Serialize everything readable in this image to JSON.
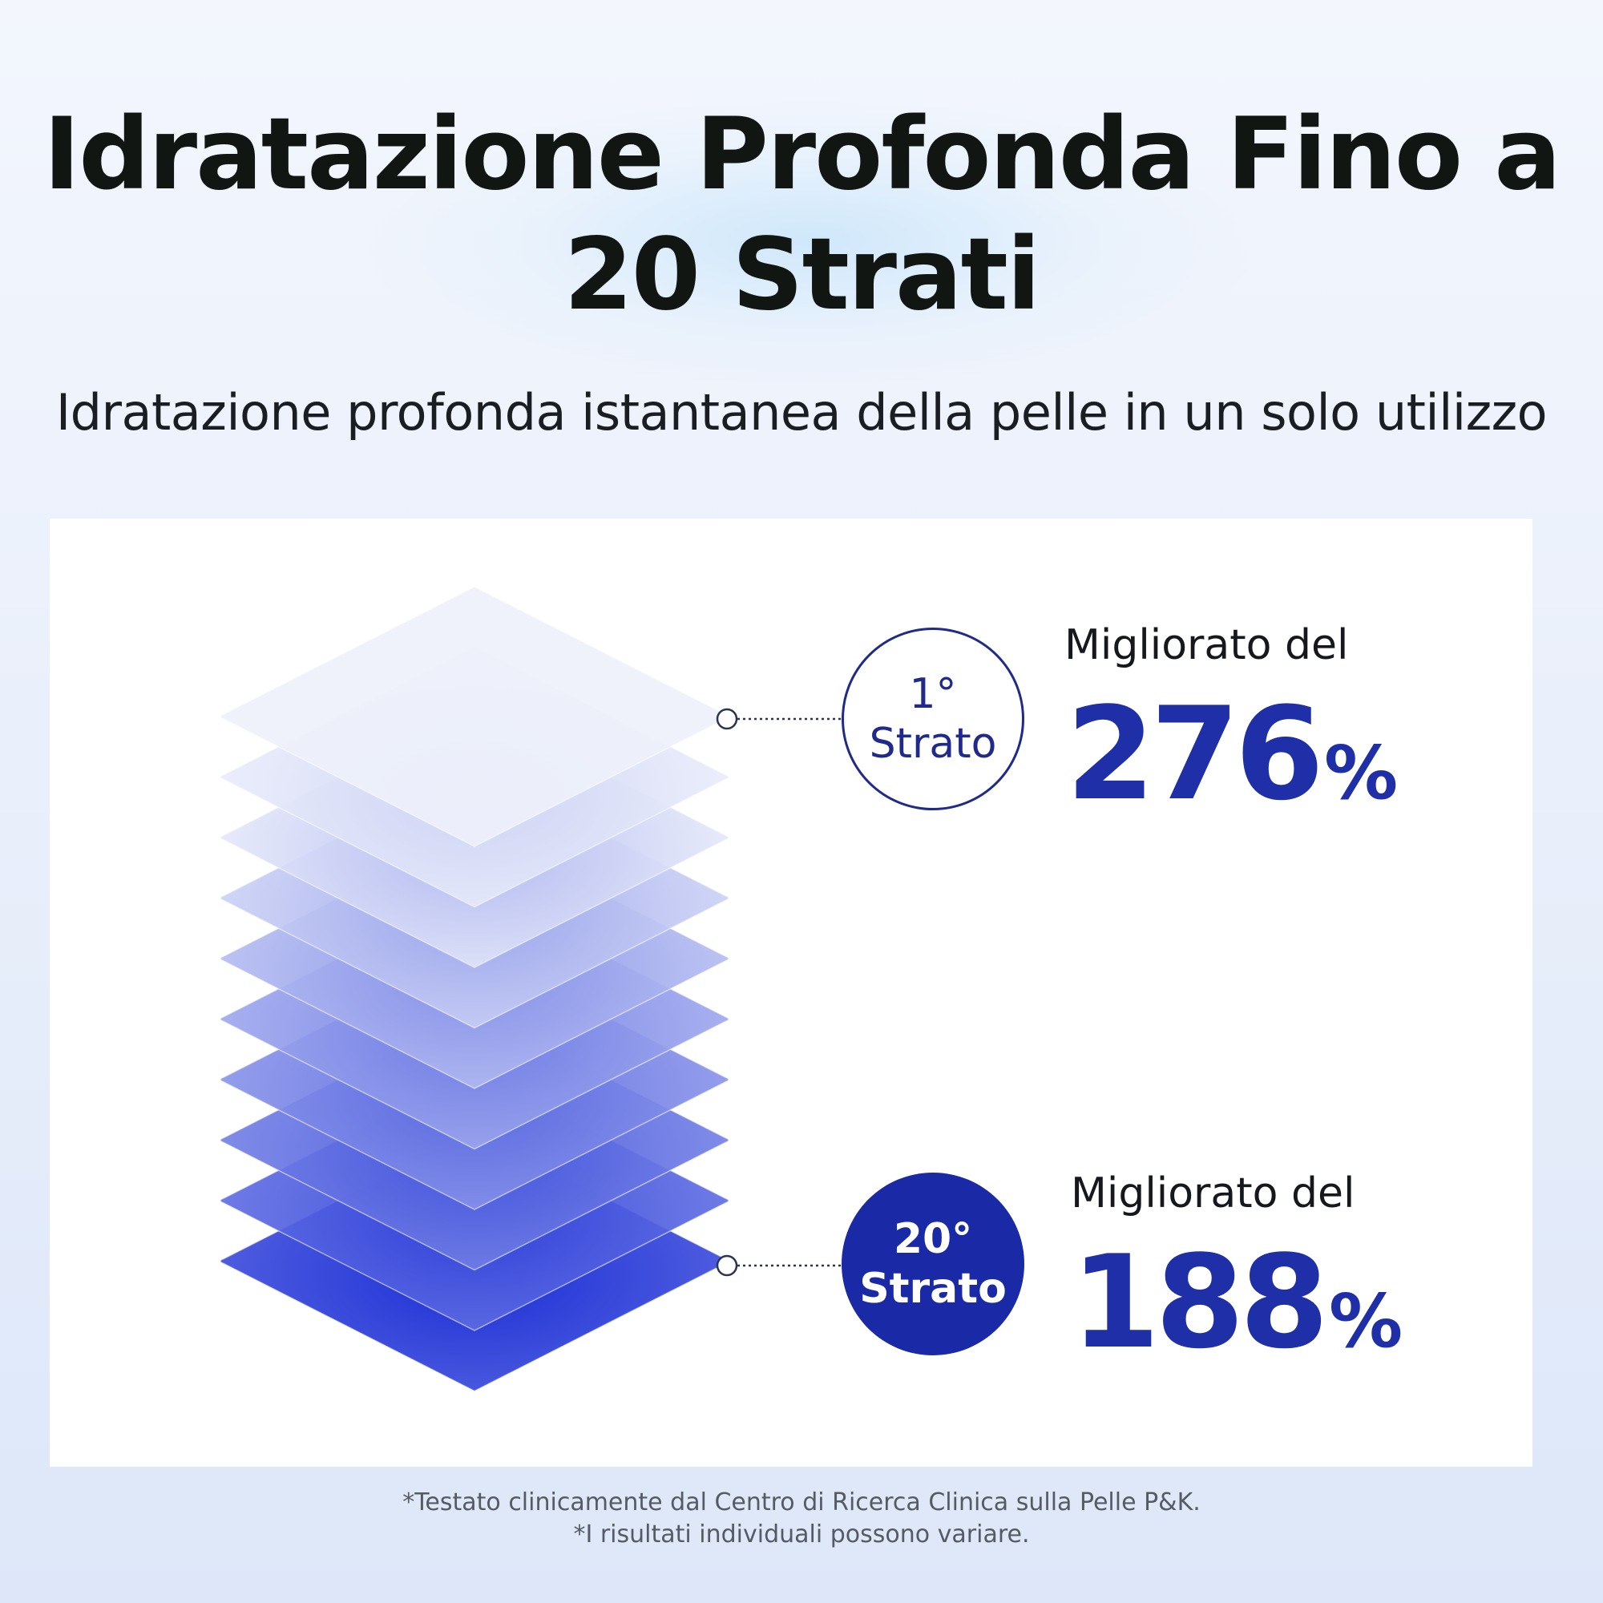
{
  "header": {
    "title": "Idratazione Profonda Fino a 20 Strati",
    "subtitle": "Idratazione profonda istantanea della pelle in un solo utilizzo"
  },
  "layers": {
    "count": 10,
    "top_color": "#eef1fb",
    "bottom_color": "#1c2fd6"
  },
  "callouts": [
    {
      "badge_line1": "1°",
      "badge_line2": "Strato",
      "label": "Migliorato del",
      "value": "276",
      "unit": "%",
      "style": "outline"
    },
    {
      "badge_line1": "20°",
      "badge_line2": "Strato",
      "label": "Migliorato del",
      "value": "188",
      "unit": "%",
      "style": "filled"
    }
  ],
  "footnotes": [
    "*Testato clinicamente dal Centro di Ricerca Clinica sulla Pelle P&K.",
    "*I risultati individuali possono variare."
  ],
  "colors": {
    "accent": "#1f2fa8",
    "badge_fill": "#1a2aa6",
    "title": "#121612"
  }
}
